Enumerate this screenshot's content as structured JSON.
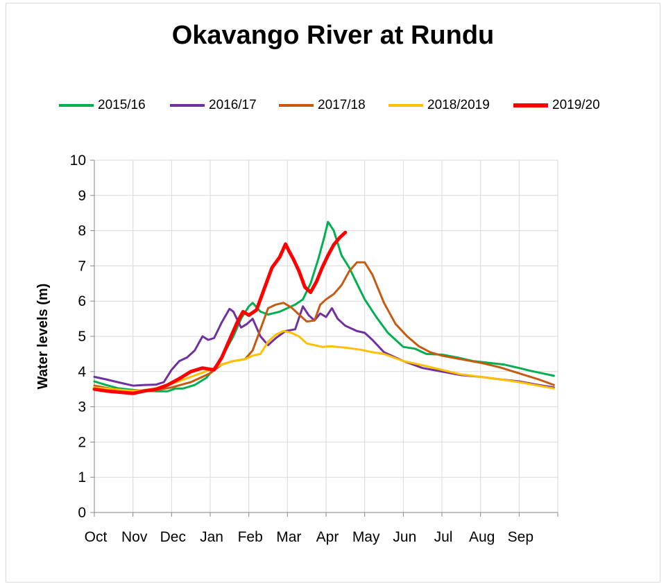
{
  "chart_data": {
    "type": "line",
    "title": "Okavango River at Rundu",
    "ylabel": "Water levels (m)",
    "xlabel": "",
    "ylim": [
      0,
      10
    ],
    "yticks": [
      "0",
      "1",
      "2",
      "3",
      "4",
      "5",
      "6",
      "7",
      "8",
      "9",
      "10"
    ],
    "months": [
      "Oct",
      "Nov",
      "Dec",
      "Jan",
      "Feb",
      "Mar",
      "Apr",
      "May",
      "Jun",
      "Jul",
      "Aug",
      "Sep"
    ],
    "grid": true,
    "legend_position": "top",
    "series": [
      {
        "name": "2015/16",
        "color": "#00b050",
        "width": 3,
        "x": [
          0,
          0.3,
          0.6,
          1.0,
          1.3,
          1.6,
          1.9,
          2.1,
          2.3,
          2.6,
          2.9,
          3.1,
          3.3,
          3.6,
          3.8,
          4.0,
          4.1,
          4.3,
          4.5,
          4.8,
          5.0,
          5.2,
          5.4,
          5.6,
          5.8,
          5.95,
          6.05,
          6.2,
          6.4,
          6.6,
          6.8,
          7.0,
          7.3,
          7.6,
          8.0,
          8.3,
          8.6,
          9.0,
          9.4,
          9.8,
          10.2,
          10.6,
          11.0,
          11.3,
          11.6,
          11.9
        ],
        "y": [
          3.72,
          3.62,
          3.53,
          3.48,
          3.46,
          3.44,
          3.44,
          3.52,
          3.52,
          3.62,
          3.82,
          4.1,
          4.4,
          5.0,
          5.5,
          5.85,
          5.95,
          5.7,
          5.62,
          5.7,
          5.8,
          5.9,
          6.05,
          6.5,
          7.2,
          7.8,
          8.25,
          8.0,
          7.3,
          6.95,
          6.5,
          6.05,
          5.55,
          5.1,
          4.7,
          4.65,
          4.5,
          4.48,
          4.4,
          4.3,
          4.25,
          4.2,
          4.1,
          4.02,
          3.95,
          3.88
        ]
      },
      {
        "name": "2016/17",
        "color": "#7030a0",
        "width": 3,
        "x": [
          0,
          0.3,
          0.6,
          1.0,
          1.3,
          1.6,
          1.8,
          2.0,
          2.2,
          2.4,
          2.6,
          2.8,
          2.95,
          3.1,
          3.3,
          3.5,
          3.6,
          3.8,
          3.95,
          4.1,
          4.3,
          4.5,
          4.7,
          4.95,
          5.2,
          5.4,
          5.55,
          5.7,
          5.85,
          6.0,
          6.15,
          6.3,
          6.5,
          6.8,
          7.0,
          7.2,
          7.5,
          8.0,
          8.5,
          9.0,
          9.5,
          10.0,
          10.5,
          11.0,
          11.5,
          11.9
        ],
        "y": [
          3.85,
          3.78,
          3.7,
          3.6,
          3.62,
          3.63,
          3.7,
          4.05,
          4.3,
          4.4,
          4.6,
          5.0,
          4.9,
          4.95,
          5.4,
          5.78,
          5.7,
          5.25,
          5.35,
          5.5,
          5.0,
          4.75,
          4.95,
          5.15,
          5.2,
          5.85,
          5.6,
          5.45,
          5.65,
          5.55,
          5.8,
          5.5,
          5.3,
          5.15,
          5.1,
          4.9,
          4.55,
          4.3,
          4.1,
          4.0,
          3.9,
          3.85,
          3.78,
          3.72,
          3.62,
          3.55
        ]
      },
      {
        "name": "2017/18",
        "color": "#c55a11",
        "width": 3,
        "x": [
          0,
          0.5,
          1.0,
          1.5,
          2.0,
          2.5,
          3.0,
          3.3,
          3.6,
          3.9,
          4.1,
          4.3,
          4.5,
          4.7,
          4.9,
          5.1,
          5.3,
          5.5,
          5.7,
          5.85,
          6.0,
          6.2,
          6.4,
          6.6,
          6.8,
          7.0,
          7.2,
          7.5,
          7.8,
          8.1,
          8.4,
          8.7,
          9.0,
          9.5,
          10.0,
          10.5,
          11.0,
          11.5,
          11.9
        ],
        "y": [
          3.6,
          3.5,
          3.45,
          3.45,
          3.55,
          3.7,
          3.95,
          4.2,
          4.3,
          4.35,
          4.6,
          5.2,
          5.8,
          5.9,
          5.95,
          5.82,
          5.62,
          5.42,
          5.45,
          5.9,
          6.05,
          6.2,
          6.45,
          6.85,
          7.1,
          7.1,
          6.75,
          5.95,
          5.35,
          5.0,
          4.72,
          4.55,
          4.45,
          4.35,
          4.25,
          4.12,
          3.95,
          3.78,
          3.62
        ]
      },
      {
        "name": "2018/2019",
        "color": "#ffc000",
        "width": 3,
        "x": [
          0,
          0.5,
          1.0,
          1.5,
          2.0,
          2.5,
          3.0,
          3.3,
          3.6,
          3.9,
          4.1,
          4.3,
          4.5,
          4.7,
          4.9,
          5.1,
          5.3,
          5.5,
          5.7,
          5.9,
          6.1,
          6.3,
          6.5,
          6.7,
          6.9,
          7.2,
          7.5,
          8.0,
          8.5,
          9.0,
          9.5,
          10.0,
          10.5,
          11.0,
          11.5,
          11.9
        ],
        "y": [
          3.55,
          3.5,
          3.45,
          3.5,
          3.65,
          3.85,
          4.05,
          4.2,
          4.3,
          4.35,
          4.45,
          4.5,
          4.85,
          5.05,
          5.15,
          5.1,
          5.0,
          4.8,
          4.75,
          4.7,
          4.72,
          4.7,
          4.68,
          4.65,
          4.62,
          4.55,
          4.5,
          4.3,
          4.18,
          4.05,
          3.92,
          3.85,
          3.78,
          3.7,
          3.6,
          3.52
        ]
      },
      {
        "name": "2019/20",
        "color": "#ff0000",
        "width": 5,
        "x": [
          0,
          0.3,
          0.6,
          1.0,
          1.3,
          1.6,
          1.9,
          2.2,
          2.5,
          2.8,
          3.1,
          3.3,
          3.5,
          3.7,
          3.85,
          4.0,
          4.2,
          4.4,
          4.6,
          4.8,
          4.95,
          5.05,
          5.15,
          5.3,
          5.45,
          5.6,
          5.75,
          5.9,
          6.05,
          6.2,
          6.35,
          6.5
        ],
        "y": [
          3.5,
          3.45,
          3.42,
          3.38,
          3.45,
          3.5,
          3.62,
          3.8,
          4.0,
          4.1,
          4.05,
          4.4,
          4.9,
          5.4,
          5.7,
          5.6,
          5.75,
          6.35,
          6.95,
          7.25,
          7.62,
          7.4,
          7.2,
          6.85,
          6.4,
          6.25,
          6.55,
          6.95,
          7.3,
          7.6,
          7.8,
          7.95
        ]
      }
    ]
  }
}
